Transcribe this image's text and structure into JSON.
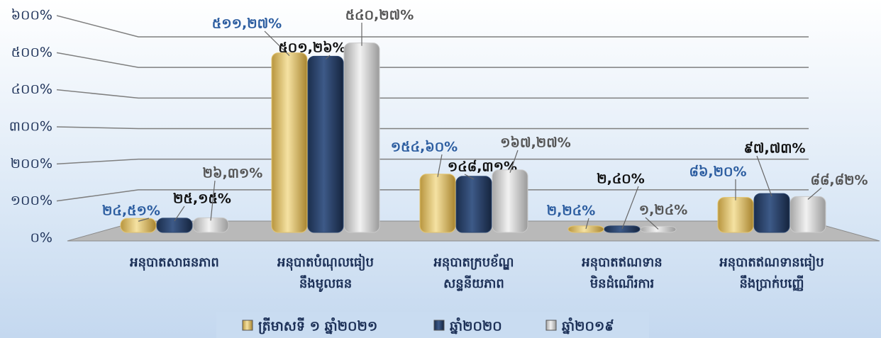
{
  "chart_data": {
    "type": "bar",
    "categories": [
      "អនុបាតសាធនភាព",
      "អនុបាតបំណុលធៀប\nនឹងមូលធន",
      "អនុបាតក្របខ័ណ្ឌ\nសន្ទនីយភាព",
      "អនុបាតឥណទាន\nមិនដំណើរការ",
      "អនុបាតឥណទានធៀប\nនឹងប្រាក់បញ្ញើ"
    ],
    "series": [
      {
        "name": "ត្រីមាសទី ១ ឆ្នាំ២០២១",
        "color": "#e3c46e",
        "values": [
          24.51,
          511.27,
          154.6,
          2.24,
          86.2
        ],
        "value_labels": [
          "២៤,៥១%",
          "៥១១,២៧%",
          "១៥៤,៦០%",
          "២,២៤%",
          "៨៦,២០%"
        ]
      },
      {
        "name": "ឆ្នាំ២០២០",
        "color": "#2b4670",
        "values": [
          25.15,
          501.26,
          148.31,
          2.4,
          97.73
        ],
        "value_labels": [
          "២៥,១៥%",
          "៥០១,២៦%",
          "១៤៨,៣១%",
          "២,៤០%",
          "៩៧,៧៣%"
        ]
      },
      {
        "name": "ឆ្នាំ២០១៩",
        "color": "#c9c9c9",
        "values": [
          26.31,
          540.27,
          167.27,
          1.24,
          88.82
        ],
        "value_labels": [
          "២៦,៣១%",
          "៥៤០,២៧%",
          "១៦៧,២៧%",
          "១,២៤%",
          "៨៨,៨២%"
        ]
      }
    ],
    "ylim": [
      0,
      600
    ],
    "yticks": [
      {
        "value": 0,
        "label": "០%"
      },
      {
        "value": 100,
        "label": "១០០%"
      },
      {
        "value": 200,
        "label": "២០០%"
      },
      {
        "value": 300,
        "label": "៣០០%"
      },
      {
        "value": 400,
        "label": "៤០០%"
      },
      {
        "value": 500,
        "label": "៥០០%"
      },
      {
        "value": 600,
        "label": "៦០០%"
      }
    ],
    "grid": true,
    "legend": "bottom"
  }
}
